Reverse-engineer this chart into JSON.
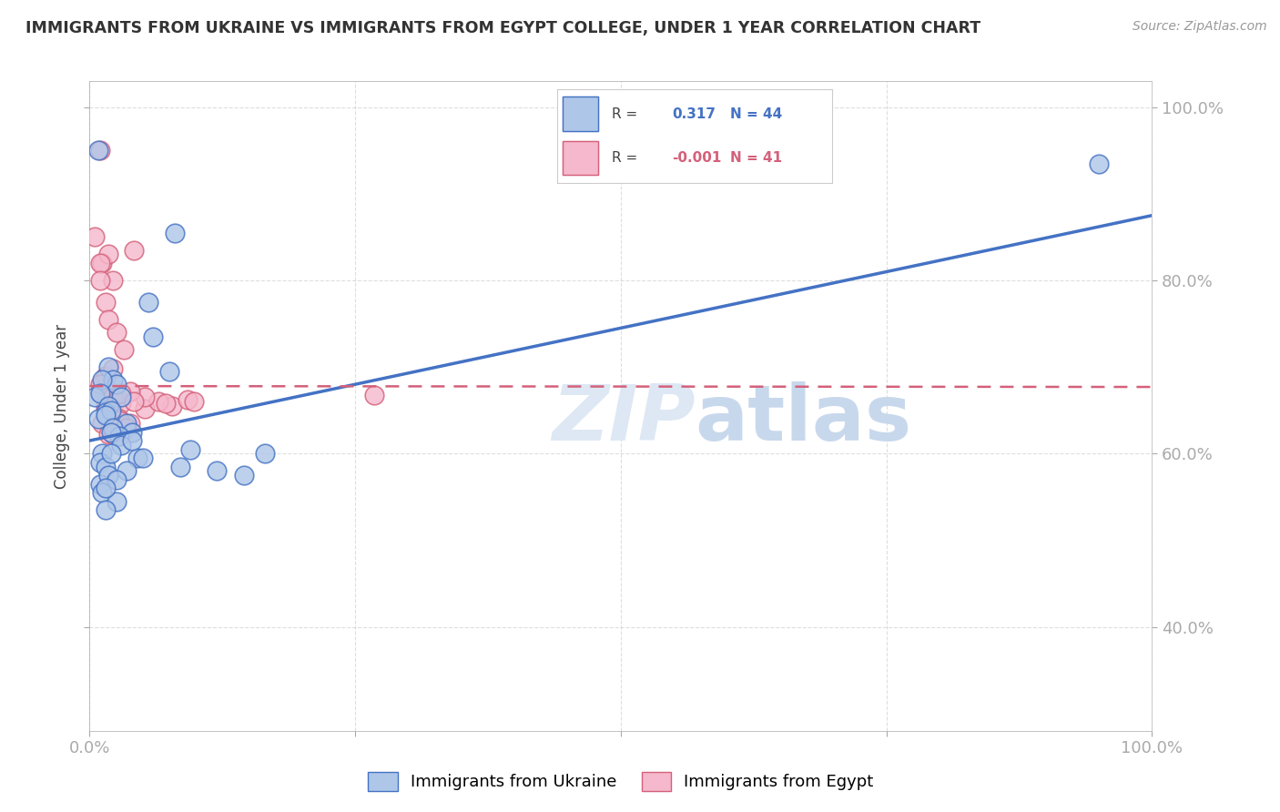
{
  "title": "IMMIGRANTS FROM UKRAINE VS IMMIGRANTS FROM EGYPT COLLEGE, UNDER 1 YEAR CORRELATION CHART",
  "source": "Source: ZipAtlas.com",
  "ylabel": "College, Under 1 year",
  "legend_label1": "Immigrants from Ukraine",
  "legend_label2": "Immigrants from Egypt",
  "R_ukraine": 0.317,
  "N_ukraine": 44,
  "R_egypt": -0.001,
  "N_egypt": 41,
  "ukraine_color": "#aec6e8",
  "egypt_color": "#f5b8cc",
  "ukraine_line_color": "#4472c4",
  "egypt_line_color": "#d4607a",
  "background_color": "#ffffff",
  "grid_color": "#c8c8c8",
  "ukraine_x": [
    0.005,
    0.08,
    0.018,
    0.022,
    0.025,
    0.03,
    0.012,
    0.01,
    0.018,
    0.015,
    0.008,
    0.035,
    0.02,
    0.015,
    0.04,
    0.055,
    0.022,
    0.028,
    0.012,
    0.01,
    0.06,
    0.075,
    0.045,
    0.02,
    0.03,
    0.015,
    0.01,
    0.018,
    0.012,
    0.025,
    0.04,
    0.02,
    0.035,
    0.05,
    0.015,
    0.025,
    0.095,
    0.085,
    0.145,
    0.165,
    0.12,
    0.95,
    0.008,
    0.015
  ],
  "ukraine_y": [
    0.665,
    0.855,
    0.7,
    0.685,
    0.68,
    0.665,
    0.685,
    0.67,
    0.655,
    0.648,
    0.64,
    0.635,
    0.65,
    0.645,
    0.625,
    0.775,
    0.63,
    0.62,
    0.6,
    0.59,
    0.735,
    0.695,
    0.595,
    0.625,
    0.61,
    0.585,
    0.565,
    0.575,
    0.555,
    0.545,
    0.615,
    0.6,
    0.58,
    0.595,
    0.535,
    0.57,
    0.605,
    0.585,
    0.575,
    0.6,
    0.58,
    0.935,
    0.95,
    0.56
  ],
  "egypt_x": [
    0.005,
    0.012,
    0.018,
    0.01,
    0.022,
    0.015,
    0.01,
    0.018,
    0.025,
    0.032,
    0.015,
    0.01,
    0.022,
    0.015,
    0.03,
    0.02,
    0.012,
    0.028,
    0.018,
    0.038,
    0.042,
    0.028,
    0.022,
    0.052,
    0.035,
    0.078,
    0.092,
    0.065,
    0.098,
    0.072,
    0.015,
    0.022,
    0.01,
    0.052,
    0.038,
    0.022,
    0.015,
    0.03,
    0.042,
    0.01,
    0.268
  ],
  "egypt_y": [
    0.85,
    0.82,
    0.83,
    0.82,
    0.8,
    0.775,
    0.8,
    0.755,
    0.74,
    0.72,
    0.655,
    0.67,
    0.648,
    0.678,
    0.658,
    0.648,
    0.635,
    0.64,
    0.622,
    0.635,
    0.835,
    0.638,
    0.622,
    0.652,
    0.63,
    0.655,
    0.662,
    0.66,
    0.66,
    0.658,
    0.69,
    0.698,
    0.68,
    0.665,
    0.672,
    0.665,
    0.65,
    0.67,
    0.66,
    0.95,
    0.668
  ],
  "xlim": [
    0.0,
    1.0
  ],
  "ylim": [
    0.28,
    1.03
  ],
  "xticks": [
    0.0,
    0.25,
    0.5,
    0.75,
    1.0
  ],
  "xticklabels": [
    "0.0%",
    "",
    "",
    "",
    "100.0%"
  ],
  "yticks": [
    0.4,
    0.6,
    0.8,
    1.0
  ],
  "yticklabels": [
    "40.0%",
    "60.0%",
    "80.0%",
    "100.0%"
  ],
  "ukraine_line_x0": 0.0,
  "ukraine_line_y0": 0.615,
  "ukraine_line_x1": 1.0,
  "ukraine_line_y1": 0.875,
  "egypt_line_x0": 0.0,
  "egypt_line_y0": 0.678,
  "egypt_line_x1": 1.0,
  "egypt_line_y1": 0.677
}
